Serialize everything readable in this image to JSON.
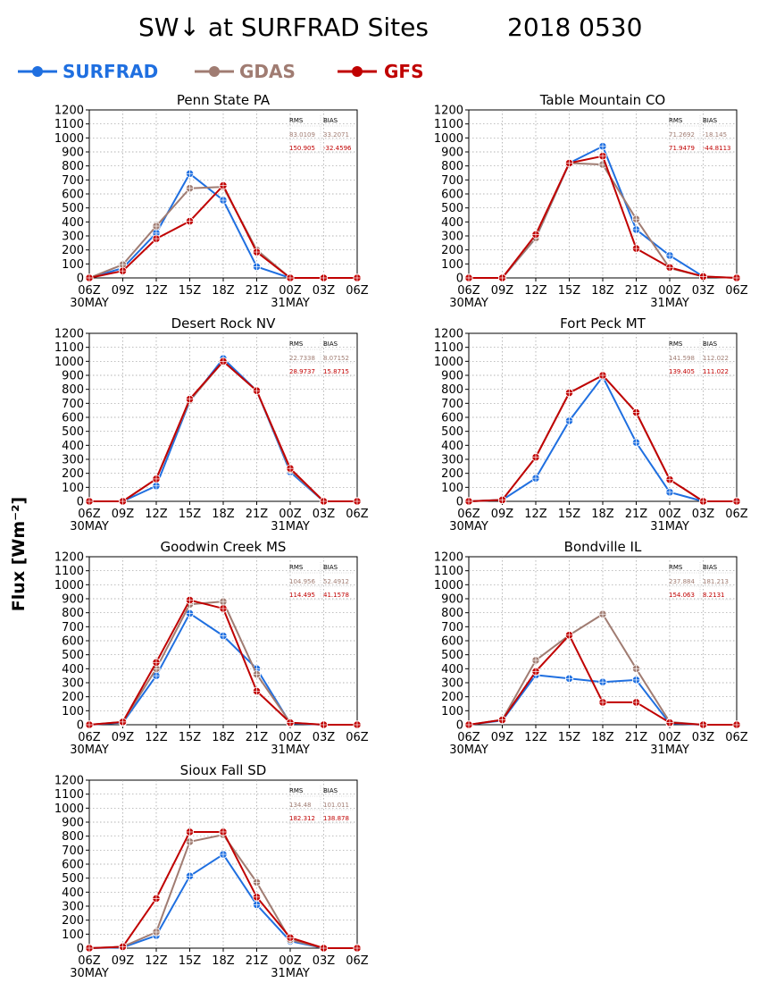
{
  "figure": {
    "title": "SW↓ at SURFRAD Sites",
    "date": "2018 0530",
    "ylabel": "Flux [Wm⁻²]"
  },
  "legend": [
    {
      "name": "SURFRAD",
      "color": "#1f6fe0"
    },
    {
      "name": "GDAS",
      "color": "#a07c72"
    },
    {
      "name": "GFS",
      "color": "#c00000"
    }
  ],
  "stats_headers": {
    "rms": "RMS",
    "bias": "BIAS"
  },
  "chart_data": [
    {
      "type": "line",
      "title": "Penn State PA",
      "categories": [
        "06Z",
        "09Z",
        "12Z",
        "15Z",
        "18Z",
        "21Z",
        "00Z",
        "03Z",
        "06Z"
      ],
      "date_labels": [
        "30MAY",
        "",
        "",
        "",
        "",
        "",
        "31MAY",
        "",
        ""
      ],
      "ylim": [
        0,
        1200
      ],
      "yticks": [
        0,
        100,
        200,
        300,
        400,
        500,
        600,
        700,
        800,
        900,
        1000,
        1100,
        1200
      ],
      "grid": true,
      "series": [
        {
          "name": "SURFRAD",
          "values": [
            0,
            70,
            320,
            745,
            555,
            80,
            0,
            null,
            null
          ]
        },
        {
          "name": "GDAS",
          "values": [
            0,
            95,
            370,
            640,
            650,
            200,
            0,
            0,
            0
          ]
        },
        {
          "name": "GFS",
          "values": [
            0,
            50,
            280,
            405,
            660,
            185,
            0,
            0,
            0
          ]
        }
      ],
      "stats": {
        "gdas": [
          "83.0109",
          "33.2071"
        ],
        "gfs": [
          "150.905",
          "-32.4596"
        ]
      }
    },
    {
      "type": "line",
      "title": "Table Mountain CO",
      "categories": [
        "06Z",
        "09Z",
        "12Z",
        "15Z",
        "18Z",
        "21Z",
        "00Z",
        "03Z",
        "06Z"
      ],
      "date_labels": [
        "30MAY",
        "",
        "",
        "",
        "",
        "",
        "31MAY",
        "",
        ""
      ],
      "ylim": [
        0,
        1200
      ],
      "yticks": [
        0,
        100,
        200,
        300,
        400,
        500,
        600,
        700,
        800,
        900,
        1000,
        1100,
        1200
      ],
      "grid": true,
      "series": [
        {
          "name": "SURFRAD",
          "values": [
            0,
            0,
            285,
            820,
            940,
            345,
            160,
            10,
            null
          ]
        },
        {
          "name": "GDAS",
          "values": [
            0,
            0,
            285,
            820,
            810,
            420,
            70,
            10,
            0
          ]
        },
        {
          "name": "GFS",
          "values": [
            0,
            0,
            310,
            820,
            870,
            210,
            75,
            10,
            0
          ]
        }
      ],
      "stats": {
        "gdas": [
          "71.2692",
          "-18.145"
        ],
        "gfs": [
          "71.9479",
          "-44.8113"
        ]
      }
    },
    {
      "type": "line",
      "title": "Desert Rock NV",
      "categories": [
        "06Z",
        "09Z",
        "12Z",
        "15Z",
        "18Z",
        "21Z",
        "00Z",
        "03Z",
        "06Z"
      ],
      "date_labels": [
        "30MAY",
        "",
        "",
        "",
        "",
        "",
        "31MAY",
        "",
        ""
      ],
      "ylim": [
        0,
        1200
      ],
      "yticks": [
        0,
        100,
        200,
        300,
        400,
        500,
        600,
        700,
        800,
        900,
        1000,
        1100,
        1200
      ],
      "grid": true,
      "series": [
        {
          "name": "SURFRAD",
          "values": [
            0,
            0,
            110,
            715,
            1020,
            790,
            210,
            0,
            null
          ]
        },
        {
          "name": "GDAS",
          "values": [
            0,
            0,
            160,
            720,
            1000,
            790,
            225,
            0,
            0
          ]
        },
        {
          "name": "GFS",
          "values": [
            0,
            0,
            160,
            730,
            1000,
            790,
            235,
            0,
            0
          ]
        }
      ],
      "stats": {
        "gdas": [
          "22.7338",
          "8.07152"
        ],
        "gfs": [
          "28.9737",
          "15.8715"
        ]
      }
    },
    {
      "type": "line",
      "title": "Fort Peck MT",
      "categories": [
        "06Z",
        "09Z",
        "12Z",
        "15Z",
        "18Z",
        "21Z",
        "00Z",
        "03Z",
        "06Z"
      ],
      "date_labels": [
        "30MAY",
        "",
        "",
        "",
        "",
        "",
        "31MAY",
        "",
        ""
      ],
      "ylim": [
        0,
        1200
      ],
      "yticks": [
        0,
        100,
        200,
        300,
        400,
        500,
        600,
        700,
        800,
        900,
        1000,
        1100,
        1200
      ],
      "grid": true,
      "series": [
        {
          "name": "SURFRAD",
          "values": [
            0,
            10,
            165,
            575,
            890,
            420,
            65,
            0,
            null
          ]
        },
        {
          "name": "GDAS",
          "values": [
            0,
            10,
            315,
            775,
            900,
            635,
            155,
            0,
            0
          ]
        },
        {
          "name": "GFS",
          "values": [
            0,
            10,
            315,
            775,
            900,
            635,
            155,
            0,
            0
          ]
        }
      ],
      "stats": {
        "gdas": [
          "141.598",
          "112.022"
        ],
        "gfs": [
          "139.405",
          "111.022"
        ]
      }
    },
    {
      "type": "line",
      "title": "Goodwin Creek MS",
      "categories": [
        "06Z",
        "09Z",
        "12Z",
        "15Z",
        "18Z",
        "21Z",
        "00Z",
        "03Z",
        "06Z"
      ],
      "date_labels": [
        "30MAY",
        "",
        "",
        "",
        "",
        "",
        "31MAY",
        "",
        ""
      ],
      "ylim": [
        0,
        1200
      ],
      "yticks": [
        0,
        100,
        200,
        300,
        400,
        500,
        600,
        700,
        800,
        900,
        1000,
        1100,
        1200
      ],
      "grid": true,
      "series": [
        {
          "name": "SURFRAD",
          "values": [
            0,
            15,
            350,
            795,
            635,
            400,
            10,
            0,
            null
          ]
        },
        {
          "name": "GDAS",
          "values": [
            0,
            20,
            400,
            860,
            880,
            360,
            15,
            0,
            0
          ]
        },
        {
          "name": "GFS",
          "values": [
            0,
            20,
            445,
            890,
            830,
            240,
            15,
            0,
            0
          ]
        }
      ],
      "stats": {
        "gdas": [
          "104.956",
          "52.4912"
        ],
        "gfs": [
          "114.495",
          "41.1578"
        ]
      }
    },
    {
      "type": "line",
      "title": "Bondville IL",
      "categories": [
        "06Z",
        "09Z",
        "12Z",
        "15Z",
        "18Z",
        "21Z",
        "00Z",
        "03Z",
        "06Z"
      ],
      "date_labels": [
        "30MAY",
        "",
        "",
        "",
        "",
        "",
        "31MAY",
        "",
        ""
      ],
      "ylim": [
        0,
        1200
      ],
      "yticks": [
        0,
        100,
        200,
        300,
        400,
        500,
        600,
        700,
        800,
        900,
        1000,
        1100,
        1200
      ],
      "grid": true,
      "series": [
        {
          "name": "SURFRAD",
          "values": [
            0,
            30,
            355,
            330,
            305,
            320,
            10,
            0,
            null
          ]
        },
        {
          "name": "GDAS",
          "values": [
            0,
            35,
            460,
            640,
            790,
            400,
            20,
            0,
            0
          ]
        },
        {
          "name": "GFS",
          "values": [
            0,
            35,
            380,
            640,
            160,
            160,
            15,
            0,
            0
          ]
        }
      ],
      "stats": {
        "gdas": [
          "237.884",
          "181.213"
        ],
        "gfs": [
          "154.063",
          "8.2131"
        ]
      }
    },
    {
      "type": "line",
      "title": "Sioux Fall SD",
      "categories": [
        "06Z",
        "09Z",
        "12Z",
        "15Z",
        "18Z",
        "21Z",
        "00Z",
        "03Z",
        "06Z"
      ],
      "date_labels": [
        "30MAY",
        "",
        "",
        "",
        "",
        "",
        "31MAY",
        "",
        ""
      ],
      "ylim": [
        0,
        1200
      ],
      "yticks": [
        0,
        100,
        200,
        300,
        400,
        500,
        600,
        700,
        800,
        900,
        1000,
        1100,
        1200
      ],
      "grid": true,
      "series": [
        {
          "name": "SURFRAD",
          "values": [
            0,
            5,
            90,
            515,
            670,
            310,
            50,
            0,
            null
          ]
        },
        {
          "name": "GDAS",
          "values": [
            0,
            10,
            115,
            760,
            810,
            470,
            60,
            0,
            0
          ]
        },
        {
          "name": "GFS",
          "values": [
            0,
            10,
            355,
            830,
            830,
            365,
            75,
            0,
            0
          ]
        }
      ],
      "stats": {
        "gdas": [
          "134.48",
          "101.011"
        ],
        "gfs": [
          "182.312",
          "138.878"
        ]
      }
    }
  ]
}
